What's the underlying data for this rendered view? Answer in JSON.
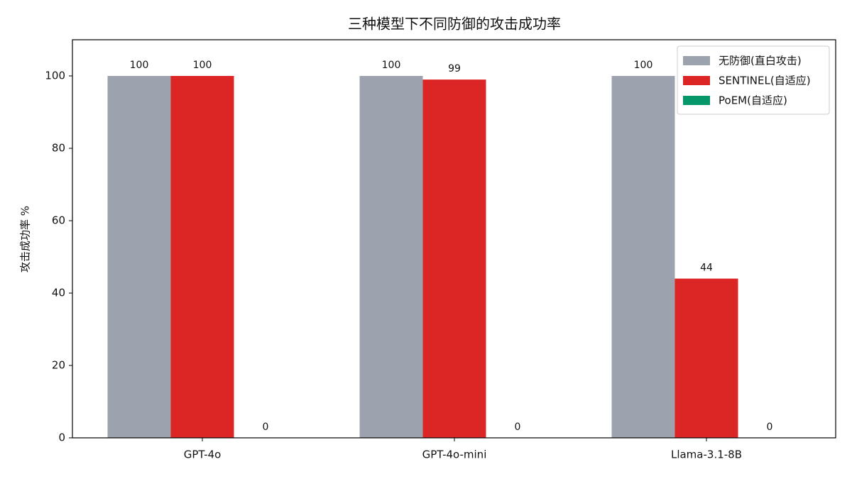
{
  "chart_data": {
    "type": "bar",
    "title": "三种模型下不同防御的攻击成功率",
    "y_label": "攻击成功率 %",
    "categories": [
      "GPT-4o",
      "GPT-4o-mini",
      "Llama-3.1-8B"
    ],
    "series": [
      {
        "name": "无防御(直白攻击)",
        "color": "#9ca3af",
        "values": [
          100,
          100,
          100
        ]
      },
      {
        "name": "SENTINEL(自适应)",
        "color": "#dc2626",
        "values": [
          100,
          99,
          44
        ]
      },
      {
        "name": "PoEM(自适应)",
        "color": "#059669",
        "values": [
          0,
          0,
          0
        ]
      }
    ],
    "ylim": [
      0,
      110
    ],
    "yticks": [
      0,
      20,
      40,
      60,
      80,
      100
    ],
    "legend": "upper right",
    "grid": false
  }
}
